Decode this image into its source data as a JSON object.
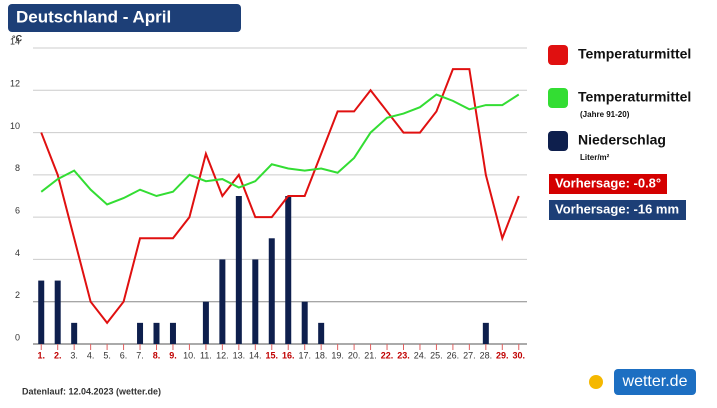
{
  "chart_data": {
    "type": "combo",
    "title": "Deutschland - April",
    "y_unit": "°C",
    "categories": [
      "1.",
      "2.",
      "3.",
      "4.",
      "5.",
      "6.",
      "7.",
      "8.",
      "9.",
      "10.",
      "11.",
      "12.",
      "13.",
      "14.",
      "15.",
      "16.",
      "17.",
      "18.",
      "19.",
      "20.",
      "21.",
      "22.",
      "23.",
      "24.",
      "25.",
      "26.",
      "27.",
      "28.",
      "29.",
      "30."
    ],
    "category_colors": [
      "#c00000",
      "#c00000",
      "#333333",
      "#333333",
      "#333333",
      "#333333",
      "#333333",
      "#c00000",
      "#c00000",
      "#333333",
      "#333333",
      "#333333",
      "#333333",
      "#333333",
      "#c00000",
      "#c00000",
      "#333333",
      "#333333",
      "#333333",
      "#333333",
      "#333333",
      "#c00000",
      "#c00000",
      "#333333",
      "#333333",
      "#333333",
      "#333333",
      "#333333",
      "#c00000",
      "#c00000"
    ],
    "series": [
      {
        "name": "Temperaturmittel",
        "type": "line",
        "color": "#e01010",
        "values": [
          10,
          8,
          5,
          2,
          1,
          2,
          5,
          5,
          5,
          6,
          9,
          7,
          8,
          6,
          6,
          7,
          7,
          9,
          11,
          11,
          12,
          11,
          10,
          10,
          11,
          13,
          13,
          8,
          5,
          7
        ]
      },
      {
        "name": "Temperaturmittel",
        "legend_note": "(Jahre 91-20)",
        "type": "line",
        "color": "#33dd33",
        "values": [
          7.2,
          7.8,
          8.2,
          7.3,
          6.6,
          6.9,
          7.3,
          7.0,
          7.2,
          8.0,
          7.7,
          7.8,
          7.4,
          7.7,
          8.5,
          8.3,
          8.2,
          8.3,
          8.1,
          8.8,
          10.0,
          10.7,
          10.9,
          11.2,
          11.8,
          11.5,
          11.1,
          11.3,
          11.3,
          11.8
        ]
      },
      {
        "name": "Niederschlag",
        "legend_note": "Liter/m²",
        "type": "bar",
        "color": "#0e1f4d",
        "values": [
          3,
          3,
          1,
          0,
          0,
          0,
          1,
          1,
          1,
          0,
          2,
          4,
          7,
          4,
          5,
          7,
          2,
          1,
          0,
          0,
          0,
          0,
          0,
          0,
          0,
          0,
          0,
          1,
          0,
          0
        ]
      }
    ],
    "ylim": [
      0,
      14
    ],
    "yticks": [
      0,
      2,
      4,
      6,
      8,
      10,
      12,
      14
    ],
    "grid": true,
    "annotations": [
      {
        "text": "Vorhersage: -0.8°",
        "color": "#d40000"
      },
      {
        "text": "Vorhersage: -16 mm",
        "color": "#1d3f77"
      }
    ],
    "footer": "Datenlauf: 12.04.2023 (wetter.de)",
    "logo": "wetter.de"
  }
}
